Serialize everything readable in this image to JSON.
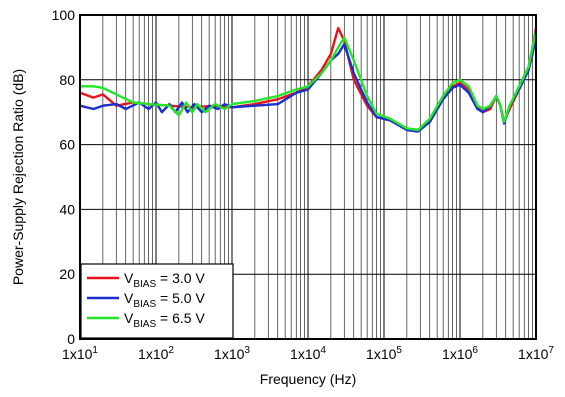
{
  "chart_data": {
    "type": "line",
    "title": "",
    "xlabel": "Frequency (Hz)",
    "ylabel": "Power-Supply Rejection Ratio (dB)",
    "x_scale": "log",
    "xlim": [
      10,
      10000000
    ],
    "ylim": [
      0,
      100
    ],
    "grid": true,
    "legend_position": "bottom-left",
    "x_ticks": [
      {
        "value": 10,
        "mantissa": "1x10",
        "exp": "1"
      },
      {
        "value": 100,
        "mantissa": "1x10",
        "exp": "2"
      },
      {
        "value": 1000,
        "mantissa": "1x10",
        "exp": "3"
      },
      {
        "value": 10000,
        "mantissa": "1x10",
        "exp": "4"
      },
      {
        "value": 100000,
        "mantissa": "1x10",
        "exp": "5"
      },
      {
        "value": 1000000,
        "mantissa": "1x10",
        "exp": "6"
      },
      {
        "value": 10000000,
        "mantissa": "1x10",
        "exp": "7"
      }
    ],
    "y_ticks": [
      "0",
      "20",
      "40",
      "60",
      "80",
      "100"
    ],
    "series": [
      {
        "name": "V_BIAS = 3.0 V",
        "legend": {
          "prefix": "V",
          "sub": "BIAS",
          "suffix": " = 3.0 V"
        },
        "color": "#e8141a",
        "points": [
          [
            10,
            76
          ],
          [
            15,
            74.5
          ],
          [
            20,
            75.5
          ],
          [
            30,
            72
          ],
          [
            50,
            73
          ],
          [
            80,
            72.5
          ],
          [
            150,
            72
          ],
          [
            300,
            71.5
          ],
          [
            600,
            72
          ],
          [
            1000,
            71.5
          ],
          [
            2000,
            72.5
          ],
          [
            4000,
            74
          ],
          [
            7000,
            76
          ],
          [
            10000,
            78
          ],
          [
            15000,
            83
          ],
          [
            20000,
            88
          ],
          [
            25000,
            96
          ],
          [
            30000,
            92
          ],
          [
            40000,
            80
          ],
          [
            60000,
            72
          ],
          [
            80000,
            68.5
          ],
          [
            120000,
            67.5
          ],
          [
            200000,
            65
          ],
          [
            280000,
            64.5
          ],
          [
            400000,
            67
          ],
          [
            600000,
            74
          ],
          [
            800000,
            78
          ],
          [
            1000000,
            79
          ],
          [
            1300000,
            77
          ],
          [
            1700000,
            72
          ],
          [
            2000000,
            70
          ],
          [
            2500000,
            71
          ],
          [
            3000000,
            75
          ],
          [
            3400000,
            72
          ],
          [
            3800000,
            67
          ],
          [
            4500000,
            71
          ],
          [
            6000000,
            77
          ],
          [
            8000000,
            84
          ],
          [
            9000000,
            90
          ],
          [
            10000000,
            96
          ]
        ]
      },
      {
        "name": "V_BIAS = 5.0 V",
        "legend": {
          "prefix": "V",
          "sub": "BIAS",
          "suffix": " = 5.0 V"
        },
        "color": "#1a2fcf",
        "points": [
          [
            10,
            72
          ],
          [
            15,
            71
          ],
          [
            20,
            72
          ],
          [
            30,
            72.5
          ],
          [
            40,
            71
          ],
          [
            60,
            73
          ],
          [
            80,
            71
          ],
          [
            100,
            73
          ],
          [
            120,
            70
          ],
          [
            150,
            72.5
          ],
          [
            180,
            70
          ],
          [
            220,
            73
          ],
          [
            260,
            70
          ],
          [
            320,
            72.5
          ],
          [
            400,
            70
          ],
          [
            500,
            72
          ],
          [
            650,
            71
          ],
          [
            800,
            72.5
          ],
          [
            1000,
            71.5
          ],
          [
            2000,
            72
          ],
          [
            4000,
            72.5
          ],
          [
            7000,
            76
          ],
          [
            10000,
            77
          ],
          [
            15000,
            82
          ],
          [
            20000,
            86
          ],
          [
            25000,
            88
          ],
          [
            30000,
            91
          ],
          [
            40000,
            82
          ],
          [
            60000,
            73
          ],
          [
            80000,
            68.5
          ],
          [
            120000,
            67.5
          ],
          [
            200000,
            64.5
          ],
          [
            280000,
            64
          ],
          [
            400000,
            67
          ],
          [
            600000,
            74
          ],
          [
            800000,
            77.5
          ],
          [
            1000000,
            78.5
          ],
          [
            1300000,
            76
          ],
          [
            1700000,
            71
          ],
          [
            2000000,
            70
          ],
          [
            2500000,
            72
          ],
          [
            3000000,
            75
          ],
          [
            3400000,
            72
          ],
          [
            3800000,
            66.5
          ],
          [
            4500000,
            72
          ],
          [
            6000000,
            77
          ],
          [
            8000000,
            83
          ],
          [
            9000000,
            88
          ],
          [
            10000000,
            93
          ]
        ]
      },
      {
        "name": "V_BIAS = 6.5 V",
        "legend": {
          "prefix": "V",
          "sub": "BIAS",
          "suffix": " = 6.5 V"
        },
        "color": "#22e626",
        "points": [
          [
            10,
            78
          ],
          [
            15,
            78
          ],
          [
            20,
            77.5
          ],
          [
            30,
            75.5
          ],
          [
            50,
            73
          ],
          [
            80,
            72.5
          ],
          [
            150,
            72
          ],
          [
            200,
            69
          ],
          [
            250,
            73
          ],
          [
            300,
            70
          ],
          [
            350,
            72.5
          ],
          [
            450,
            70
          ],
          [
            600,
            72.5
          ],
          [
            800,
            71
          ],
          [
            1000,
            72.5
          ],
          [
            2000,
            73.5
          ],
          [
            4000,
            75
          ],
          [
            7000,
            77
          ],
          [
            10000,
            78
          ],
          [
            15000,
            82
          ],
          [
            20000,
            86
          ],
          [
            25000,
            90
          ],
          [
            30000,
            93
          ],
          [
            40000,
            86
          ],
          [
            60000,
            75
          ],
          [
            80000,
            69.5
          ],
          [
            120000,
            68
          ],
          [
            200000,
            65
          ],
          [
            280000,
            64.5
          ],
          [
            400000,
            68
          ],
          [
            600000,
            75
          ],
          [
            800000,
            79
          ],
          [
            1000000,
            80
          ],
          [
            1300000,
            78
          ],
          [
            1700000,
            72
          ],
          [
            2000000,
            71
          ],
          [
            2500000,
            72
          ],
          [
            3000000,
            75
          ],
          [
            3400000,
            72
          ],
          [
            3800000,
            67
          ],
          [
            4500000,
            72
          ],
          [
            6000000,
            78
          ],
          [
            8000000,
            84
          ],
          [
            9000000,
            90
          ],
          [
            10000000,
            95
          ]
        ]
      }
    ]
  }
}
